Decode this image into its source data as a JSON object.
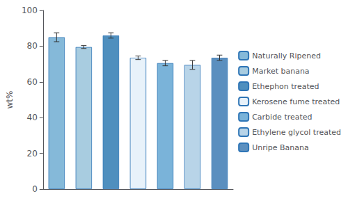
{
  "chart_data": {
    "type": "bar",
    "ylabel": "wt%",
    "categories": [
      "Naturally Ripened",
      "Market banana",
      "Ethephon treated",
      "Kerosene fume treated",
      "Carbide treated",
      "Ethylene glycol treated",
      "Unripe Banana"
    ],
    "values": [
      85.0,
      79.5,
      86.0,
      73.5,
      70.5,
      69.5,
      73.5
    ],
    "errors": [
      2.5,
      0.8,
      1.5,
      1.0,
      1.5,
      2.5,
      1.5
    ],
    "colors": [
      "#85b9d9",
      "#a8cce0",
      "#4f8fbe",
      "#e8f2fa",
      "#7ab3d9",
      "#b8d4e8",
      "#5b8fbf"
    ],
    "ylim": [
      0,
      100
    ],
    "yticks": [
      0,
      20,
      40,
      60,
      80,
      100
    ],
    "grid": false,
    "legend": "right",
    "tick_labels": "y"
  }
}
